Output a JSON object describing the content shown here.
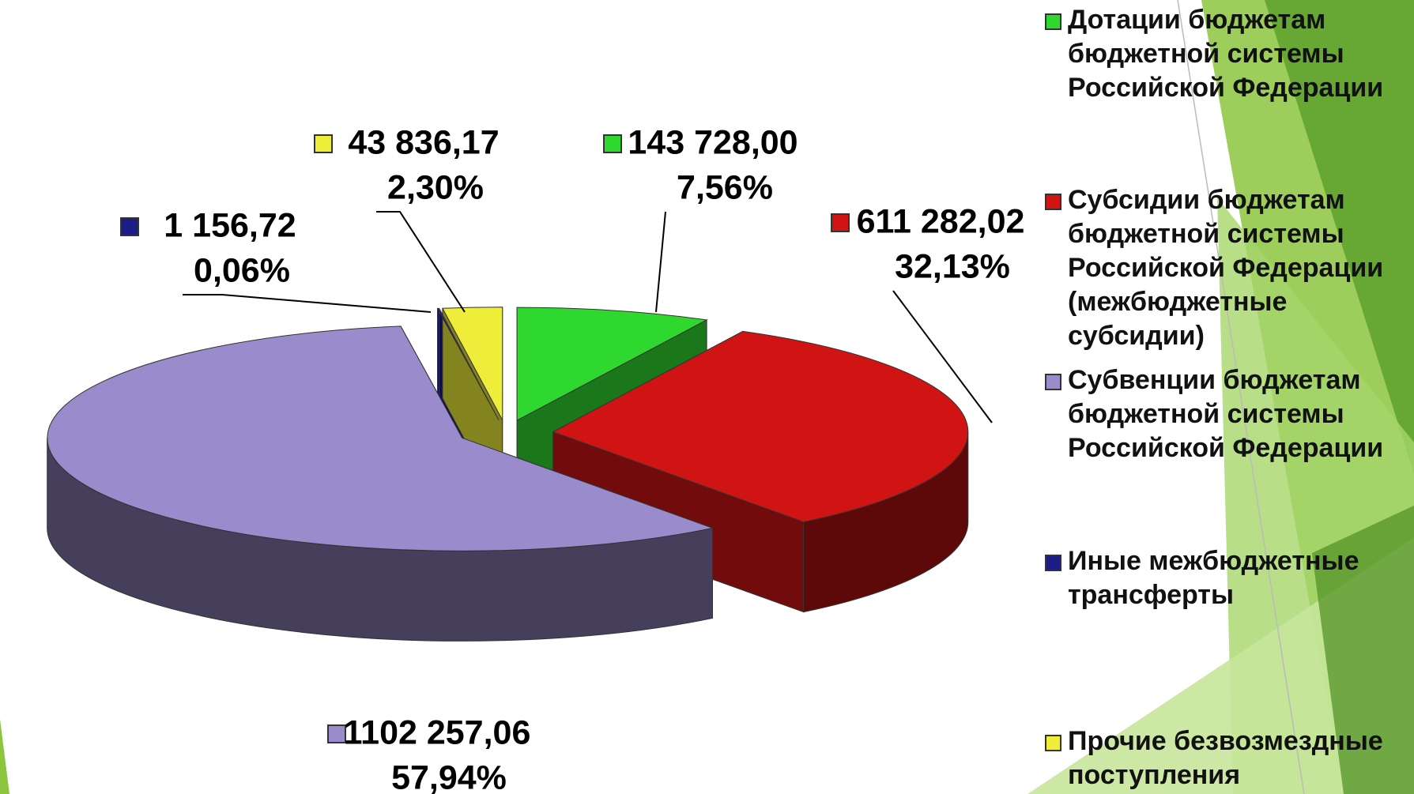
{
  "chart_data": {
    "type": "pie",
    "categories": [
      "Дотации бюджетам бюджетной системы Российской Федерации",
      "Субсидии бюджетам бюджетной системы Российской Федерации (межбюджетные субсидии)",
      "Субвенции бюджетам бюджетной системы Российской Федерации",
      "Иные межбюджетные трансферты",
      "Прочие безвозмездные поступления"
    ],
    "values": [
      143728.0,
      611282.02,
      1102257.06,
      1156.72,
      43836.17
    ],
    "value_labels": [
      "143 728,00",
      "611 282,02",
      "1102 257,06",
      "1 156,72",
      "43 836,17"
    ],
    "percents": [
      7.56,
      32.13,
      57.94,
      0.06,
      2.3
    ],
    "percent_labels": [
      "7,56%",
      "32,13%",
      "57,94%",
      "0,06%",
      "2,30%"
    ],
    "colors": [
      "#2fd82f",
      "#d01414",
      "#9a8ccc",
      "#1c1c86",
      "#eeee3a"
    ],
    "legend": "right"
  }
}
